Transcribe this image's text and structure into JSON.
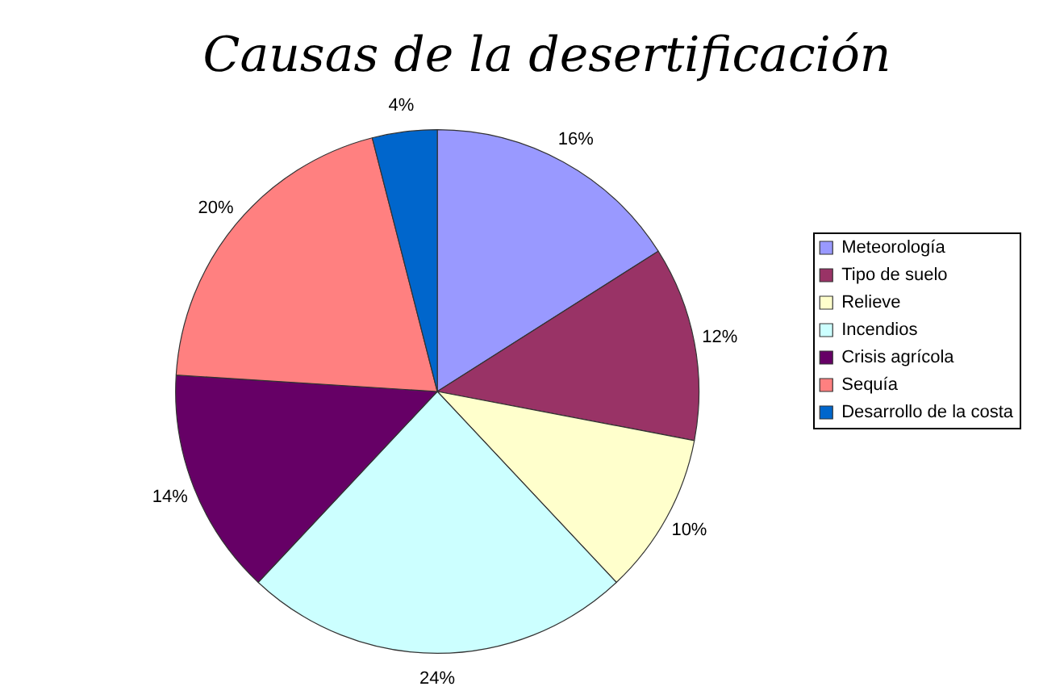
{
  "chart_data": {
    "type": "pie",
    "title": "Causas de la desertificación",
    "categories": [
      "Meteorología",
      "Tipo de suelo",
      "Relieve",
      "Incendios",
      "Crisis agrícola",
      "Sequía",
      "Desarrollo de la costa"
    ],
    "values": [
      16,
      12,
      10,
      24,
      14,
      20,
      4
    ],
    "value_labels": [
      "16%",
      "12%",
      "10%",
      "24%",
      "14%",
      "20%",
      "4%"
    ],
    "colors": [
      "#9999ff",
      "#993366",
      "#ffffcc",
      "#ccffff",
      "#660066",
      "#ff8080",
      "#0066cc"
    ],
    "legend": "right"
  }
}
